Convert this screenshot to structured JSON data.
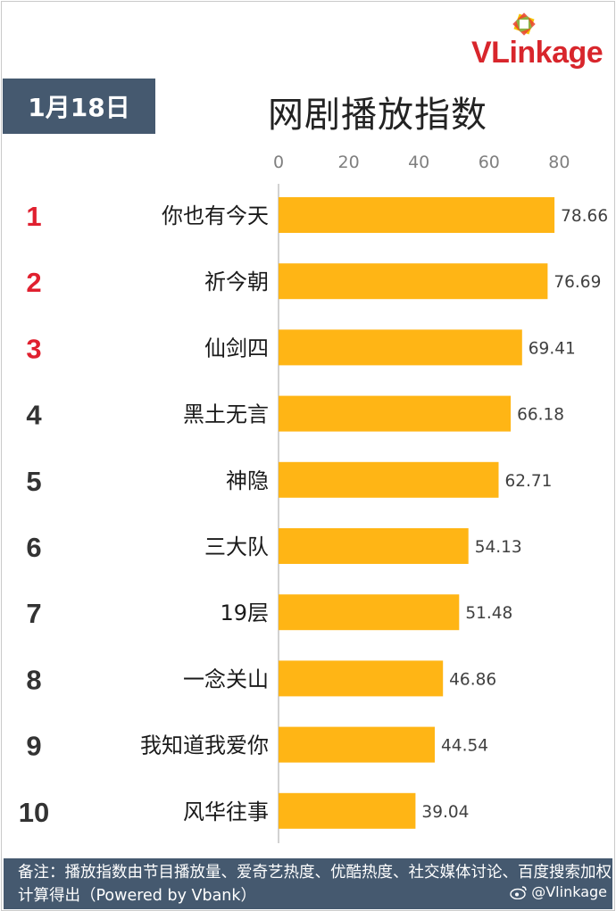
{
  "brand": {
    "logo_text": "VLinkage"
  },
  "header": {
    "date": "1月18日",
    "title": "网剧播放指数"
  },
  "footer": {
    "note": "备注：播放指数由节目播放量、爱奇艺热度、优酷热度、社交媒体讨论、百度搜索加权计算得出（Powered by Vbank）",
    "watermark": "@Vlinkage"
  },
  "colors": {
    "bar": "#FFB515",
    "rank_top": "#E0202F",
    "rank_other": "#333333",
    "header_bg": "#45596F"
  },
  "chart_data": {
    "type": "bar",
    "orientation": "horizontal",
    "title": "网剧播放指数",
    "xlim": [
      0,
      80
    ],
    "x_ticks": [
      0,
      20,
      40,
      60,
      80
    ],
    "axis_position": "top",
    "grid": false,
    "ranks": [
      "1",
      "2",
      "3",
      "4",
      "5",
      "6",
      "7",
      "8",
      "9",
      "10"
    ],
    "categories": [
      "你也有今天",
      "祈今朝",
      "仙剑四",
      "黑土无言",
      "神隐",
      "三大队",
      "19层",
      "一念关山",
      "我知道我爱你",
      "风华往事"
    ],
    "values": [
      78.66,
      76.69,
      69.41,
      66.18,
      62.71,
      54.13,
      51.48,
      46.86,
      44.54,
      39.04
    ],
    "value_labels": [
      "78.66",
      "76.69",
      "69.41",
      "66.18",
      "62.71",
      "54.13",
      "51.48",
      "46.86",
      "44.54",
      "39.04"
    ]
  }
}
